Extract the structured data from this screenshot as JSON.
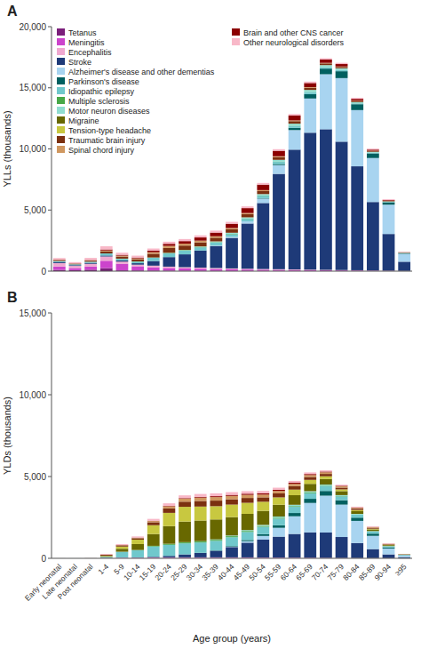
{
  "chart_data": [
    {
      "type": "bar",
      "stacked": true,
      "title": "A",
      "ylabel": "YLLs (thousands)",
      "legend": "upper left",
      "grid": false,
      "tick_labels": "y",
      "categories": [
        "Early neonatal",
        "Late neonatal",
        "Post neonatal",
        "1-4",
        "5-9",
        "10-14",
        "15-19",
        "20-24",
        "25-29",
        "30-34",
        "35-39",
        "40-44",
        "45-49",
        "50-54",
        "55-59",
        "60-64",
        "65-69",
        "70-74",
        "75-79",
        "80-84",
        "85-89",
        "90-94",
        "≥95"
      ],
      "ylim": [
        0,
        20000
      ],
      "yticks": [
        0,
        {
          "value": 5000,
          "label": "5,000"
        },
        {
          "value": 10000,
          "label": "10,000"
        },
        {
          "value": 15000,
          "label": "15,000"
        },
        {
          "value": 20000,
          "label": "20,000"
        }
      ],
      "series": [
        {
          "name": "Tetanus",
          "color": "#7b1f7b",
          "values": [
            100,
            80,
            120,
            250,
            60,
            50,
            40,
            30,
            25,
            20,
            18,
            15,
            12,
            10,
            8,
            6,
            5,
            4,
            3,
            2,
            1,
            1,
            0
          ]
        },
        {
          "name": "Meningitis",
          "color": "#cc44cc",
          "values": [
            280,
            180,
            260,
            600,
            550,
            350,
            280,
            230,
            200,
            180,
            160,
            140,
            120,
            110,
            100,
            90,
            80,
            70,
            60,
            50,
            35,
            25,
            15
          ]
        },
        {
          "name": "Encephalitis",
          "color": "#f0a8d0",
          "values": [
            280,
            170,
            220,
            350,
            170,
            130,
            130,
            110,
            100,
            90,
            80,
            70,
            65,
            55,
            50,
            45,
            40,
            35,
            30,
            25,
            20,
            15,
            8
          ]
        },
        {
          "name": "Stroke",
          "color": "#1e3a78",
          "values": [
            80,
            60,
            80,
            80,
            100,
            120,
            380,
            780,
            1050,
            1400,
            1800,
            2500,
            3700,
            5400,
            7800,
            9800,
            11200,
            11500,
            10500,
            8500,
            5600,
            3000,
            750
          ]
        },
        {
          "name": "Alzheimer's disease and other dementias",
          "color": "#a8d4f0",
          "values": [
            0,
            0,
            0,
            0,
            0,
            0,
            0,
            0,
            0,
            0,
            40,
            80,
            180,
            360,
            720,
            1600,
            2800,
            4500,
            5200,
            4600,
            3600,
            2400,
            650
          ]
        },
        {
          "name": "Parkinson's disease",
          "color": "#006060",
          "values": [
            0,
            0,
            0,
            0,
            0,
            0,
            0,
            0,
            0,
            0,
            0,
            0,
            0,
            40,
            90,
            180,
            360,
            460,
            560,
            480,
            380,
            190,
            45
          ]
        },
        {
          "name": "Idiopathic epilepsy",
          "color": "#70c8cc",
          "values": [
            90,
            70,
            90,
            170,
            130,
            130,
            260,
            300,
            300,
            260,
            240,
            220,
            200,
            190,
            170,
            160,
            140,
            110,
            90,
            70,
            55,
            35,
            18
          ]
        },
        {
          "name": "Multiple sclerosis",
          "color": "#48a848",
          "values": [
            0,
            0,
            0,
            0,
            8,
            15,
            25,
            35,
            35,
            35,
            35,
            35,
            30,
            25,
            22,
            18,
            13,
            9,
            7,
            4,
            3,
            2,
            1
          ]
        },
        {
          "name": "Motor neuron diseases",
          "color": "#90ddd0",
          "values": [
            0,
            0,
            0,
            0,
            0,
            0,
            0,
            15,
            25,
            35,
            55,
            75,
            90,
            110,
            140,
            165,
            185,
            165,
            140,
            90,
            65,
            35,
            12
          ]
        },
        {
          "name": "Migraine",
          "color": "#686800",
          "values": [
            0,
            0,
            0,
            0,
            4,
            4,
            4,
            4,
            4,
            4,
            4,
            4,
            4,
            4,
            4,
            4,
            4,
            4,
            4,
            4,
            4,
            4,
            4
          ]
        },
        {
          "name": "Tension-type headache",
          "color": "#c8c840",
          "values": [
            0,
            0,
            0,
            0,
            4,
            4,
            4,
            4,
            4,
            4,
            4,
            4,
            4,
            4,
            4,
            4,
            4,
            4,
            4,
            4,
            4,
            4,
            4
          ]
        },
        {
          "name": "Traumatic brain injury",
          "color": "#7b3010",
          "values": [
            70,
            50,
            90,
            170,
            170,
            170,
            300,
            390,
            350,
            330,
            300,
            280,
            260,
            240,
            220,
            200,
            165,
            135,
            110,
            90,
            65,
            45,
            18
          ]
        },
        {
          "name": "Spinal chord injury",
          "color": "#d09860",
          "values": [
            25,
            18,
            28,
            70,
            70,
            70,
            130,
            170,
            155,
            140,
            120,
            105,
            90,
            80,
            70,
            60,
            55,
            45,
            35,
            28,
            22,
            14,
            5
          ]
        },
        {
          "name": "Brain and other CNS cancer",
          "color": "#8b0000",
          "values": [
            18,
            12,
            25,
            85,
            70,
            70,
            130,
            170,
            210,
            260,
            300,
            350,
            400,
            450,
            450,
            400,
            340,
            270,
            200,
            145,
            90,
            55,
            18
          ]
        },
        {
          "name": "Other neurological disorders",
          "color": "#f8b8c8",
          "values": [
            130,
            100,
            170,
            260,
            170,
            155,
            170,
            170,
            170,
            170,
            160,
            155,
            145,
            135,
            130,
            120,
            115,
            105,
            100,
            90,
            80,
            65,
            28
          ]
        }
      ]
    },
    {
      "type": "bar",
      "stacked": true,
      "title": "B",
      "ylabel": "YLDs (thousands)",
      "xlabel": "Age group (years)",
      "legend": false,
      "grid": false,
      "categories": [
        "Early neonatal",
        "Late neonatal",
        "Post neonatal",
        "1-4",
        "5-9",
        "10-14",
        "15-19",
        "20-24",
        "25-29",
        "30-34",
        "35-39",
        "40-44",
        "45-49",
        "50-54",
        "55-59",
        "60-64",
        "65-69",
        "70-74",
        "75-79",
        "80-84",
        "85-89",
        "90-94",
        "≥95"
      ],
      "ylim": [
        0,
        15000
      ],
      "yticks": [
        0,
        {
          "value": 5000,
          "label": "5,000"
        },
        {
          "value": 10000,
          "label": "10,000"
        },
        {
          "value": 15000,
          "label": "15,000"
        }
      ],
      "series": [
        {
          "name": "Tetanus",
          "color": "#7b1f7b",
          "values": [
            0,
            0,
            0,
            0,
            0,
            0,
            0,
            0,
            0,
            0,
            0,
            0,
            0,
            0,
            0,
            0,
            0,
            0,
            0,
            0,
            0,
            0,
            0
          ]
        },
        {
          "name": "Meningitis",
          "color": "#cc44cc",
          "values": [
            0,
            0,
            0,
            15,
            25,
            25,
            35,
            35,
            35,
            35,
            35,
            35,
            35,
            30,
            28,
            25,
            22,
            18,
            13,
            10,
            8,
            6,
            4
          ]
        },
        {
          "name": "Encephalitis",
          "color": "#f0a8d0",
          "values": [
            0,
            0,
            0,
            8,
            15,
            15,
            25,
            25,
            25,
            25,
            25,
            25,
            23,
            20,
            18,
            16,
            14,
            12,
            10,
            8,
            6,
            5,
            2
          ]
        },
        {
          "name": "Stroke",
          "color": "#1e3a78",
          "values": [
            0,
            0,
            0,
            0,
            0,
            8,
            35,
            90,
            180,
            270,
            400,
            630,
            900,
            1100,
            1280,
            1450,
            1550,
            1550,
            1280,
            920,
            550,
            230,
            70
          ]
        },
        {
          "name": "Alzheimer's disease and other dementias",
          "color": "#a8d4f0",
          "values": [
            0,
            0,
            0,
            0,
            0,
            0,
            0,
            0,
            0,
            0,
            8,
            25,
            90,
            220,
            540,
            1080,
            1800,
            2250,
            1980,
            1350,
            810,
            360,
            90
          ]
        },
        {
          "name": "Parkinson's disease",
          "color": "#006060",
          "values": [
            0,
            0,
            0,
            0,
            0,
            0,
            0,
            0,
            0,
            8,
            18,
            36,
            72,
            108,
            153,
            198,
            252,
            288,
            270,
            198,
            135,
            63,
            18
          ]
        },
        {
          "name": "Idiopathic epilepsy",
          "color": "#70c8cc",
          "values": [
            4,
            2,
            4,
            70,
            360,
            450,
            630,
            675,
            675,
            630,
            585,
            540,
            495,
            450,
            414,
            378,
            342,
            288,
            234,
            180,
            126,
            72,
            27
          ]
        },
        {
          "name": "Multiple sclerosis",
          "color": "#48a848",
          "values": [
            0,
            0,
            0,
            0,
            4,
            13,
            36,
            54,
            59,
            63,
            63,
            63,
            59,
            54,
            50,
            45,
            41,
            32,
            23,
            16,
            11,
            6,
            3
          ]
        },
        {
          "name": "Motor neuron diseases",
          "color": "#90ddd0",
          "values": [
            0,
            0,
            0,
            0,
            0,
            0,
            4,
            9,
            14,
            18,
            27,
            41,
            54,
            63,
            72,
            81,
            81,
            72,
            54,
            36,
            23,
            11,
            5
          ]
        },
        {
          "name": "Migraine",
          "color": "#686800",
          "values": [
            0,
            0,
            0,
            45,
            180,
            360,
            720,
            1080,
            1260,
            1260,
            1215,
            1125,
            990,
            855,
            720,
            585,
            450,
            342,
            243,
            162,
            99,
            54,
            18
          ]
        },
        {
          "name": "Tension-type headache",
          "color": "#c8c840",
          "values": [
            0,
            0,
            0,
            27,
            135,
            270,
            540,
            810,
            900,
            855,
            810,
            765,
            675,
            558,
            450,
            342,
            243,
            162,
            108,
            68,
            41,
            23,
            7
          ]
        },
        {
          "name": "Traumatic brain injury",
          "color": "#7b3010",
          "values": [
            0,
            0,
            4,
            54,
            72,
            90,
            180,
            270,
            315,
            342,
            342,
            324,
            297,
            270,
            243,
            216,
            180,
            144,
            108,
            81,
            54,
            32,
            11
          ]
        },
        {
          "name": "Spinal chord injury",
          "color": "#d09860",
          "values": [
            0,
            0,
            0,
            9,
            18,
            27,
            72,
            135,
            180,
            207,
            216,
            207,
            189,
            171,
            153,
            135,
            117,
            99,
            77,
            54,
            36,
            18,
            6
          ]
        },
        {
          "name": "Brain and other CNS cancer",
          "color": "#8b0000",
          "values": [
            0,
            0,
            0,
            4,
            7,
            9,
            18,
            27,
            36,
            45,
            54,
            63,
            72,
            77,
            72,
            68,
            59,
            45,
            36,
            25,
            16,
            9,
            4
          ]
        },
        {
          "name": "Other neurological disorders",
          "color": "#f8b8c8",
          "values": [
            4,
            2,
            4,
            36,
            54,
            72,
            117,
            153,
            171,
            176,
            176,
            167,
            153,
            140,
            126,
            113,
            99,
            81,
            63,
            50,
            36,
            23,
            7
          ]
        }
      ]
    }
  ]
}
